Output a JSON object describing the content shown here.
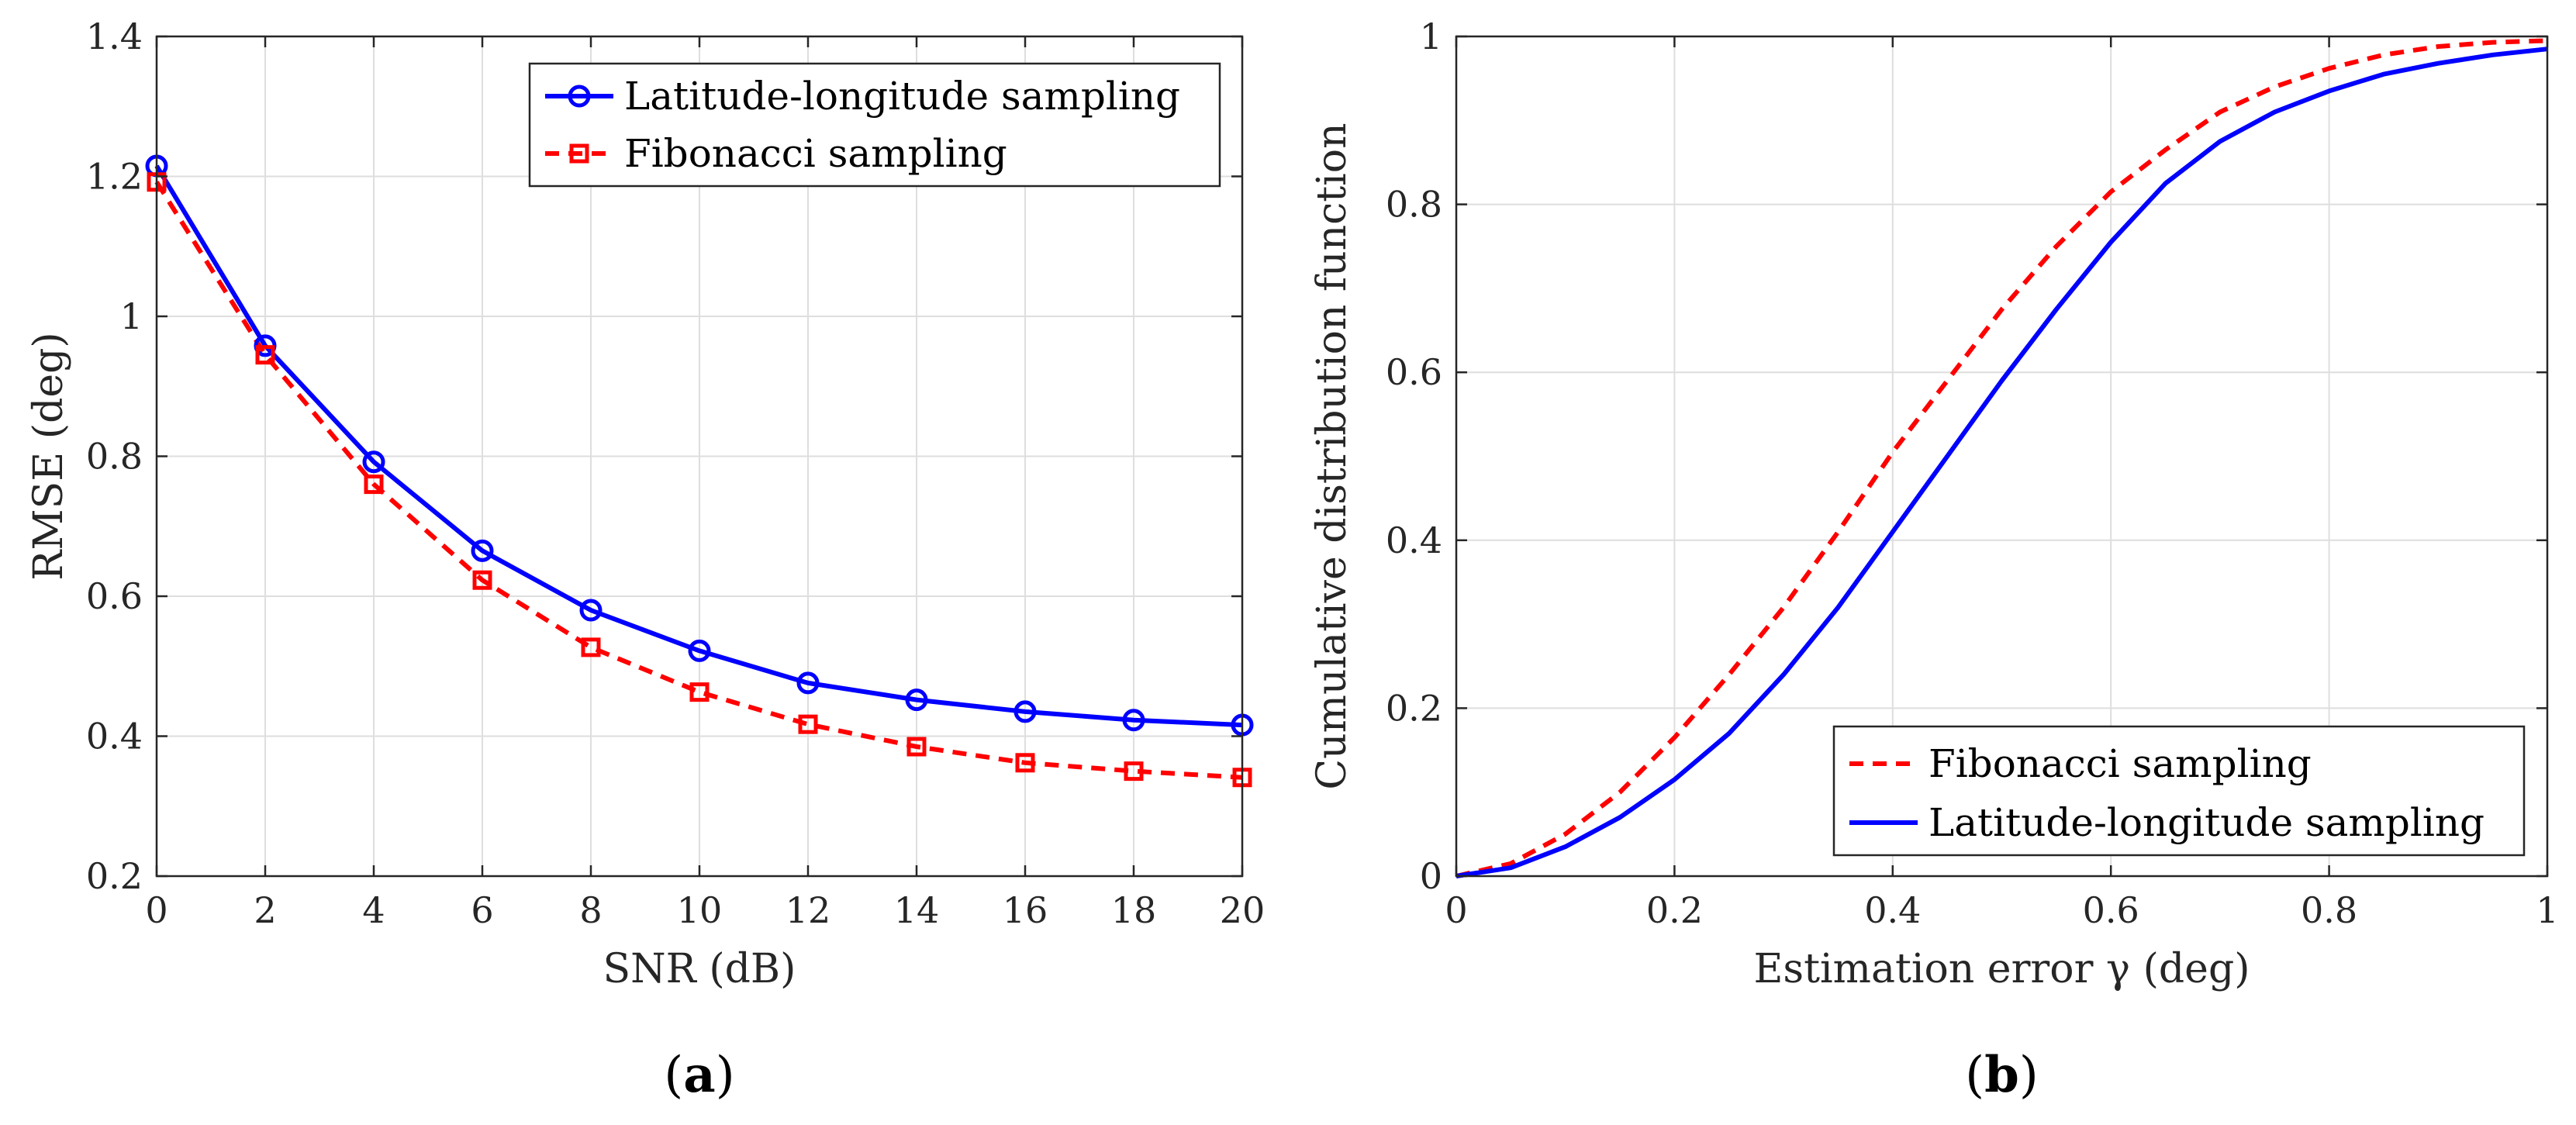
{
  "chart_data": [
    {
      "id": "a",
      "type": "line",
      "panel_label": "a",
      "xlabel": "SNR (dB)",
      "ylabel": "RMSE (deg)",
      "xlim": [
        0,
        20
      ],
      "ylim": [
        0.2,
        1.4
      ],
      "xticks": [
        "0",
        "2",
        "4",
        "6",
        "8",
        "10",
        "12",
        "14",
        "16",
        "18",
        "20"
      ],
      "yticks": [
        "0.2",
        "0.4",
        "0.6",
        "0.8",
        "1",
        "1.2",
        "1.4"
      ],
      "grid": true,
      "legend_position": "top-right",
      "x": [
        0,
        2,
        4,
        6,
        8,
        10,
        12,
        14,
        16,
        18,
        20
      ],
      "series": [
        {
          "name": "Latitude-longitude sampling",
          "color": "#0000ff",
          "style": "solid",
          "marker": "circle",
          "values": [
            1.215,
            0.958,
            0.792,
            0.665,
            0.58,
            0.522,
            0.476,
            0.452,
            0.435,
            0.423,
            0.416
          ]
        },
        {
          "name": "Fibonacci sampling",
          "color": "#ff0000",
          "style": "dashed",
          "marker": "square",
          "values": [
            1.192,
            0.945,
            0.76,
            0.623,
            0.527,
            0.463,
            0.417,
            0.385,
            0.362,
            0.35,
            0.341
          ]
        }
      ]
    },
    {
      "id": "b",
      "type": "line",
      "panel_label": "b",
      "xlabel": "Estimation error γ (deg)",
      "ylabel": "Cumulative distribution function",
      "xlim": [
        0,
        1
      ],
      "ylim": [
        0,
        1
      ],
      "xticks": [
        "0",
        "0.2",
        "0.4",
        "0.6",
        "0.8",
        "1"
      ],
      "yticks": [
        "0",
        "0.2",
        "0.4",
        "0.6",
        "0.8",
        "1"
      ],
      "grid": true,
      "legend_position": "bottom-right",
      "x": [
        0,
        0.05,
        0.1,
        0.15,
        0.2,
        0.25,
        0.3,
        0.35,
        0.4,
        0.45,
        0.5,
        0.55,
        0.6,
        0.65,
        0.7,
        0.75,
        0.8,
        0.85,
        0.9,
        0.95,
        1.0
      ],
      "series": [
        {
          "name": "Fibonacci sampling",
          "color": "#ff0000",
          "style": "dashed",
          "values": [
            0.0,
            0.015,
            0.05,
            0.1,
            0.165,
            0.24,
            0.32,
            0.41,
            0.505,
            0.59,
            0.675,
            0.75,
            0.815,
            0.865,
            0.91,
            0.94,
            0.962,
            0.978,
            0.988,
            0.993,
            0.995
          ]
        },
        {
          "name": "Latitude-longitude sampling",
          "color": "#0000ff",
          "style": "solid",
          "values": [
            0.0,
            0.01,
            0.035,
            0.07,
            0.115,
            0.17,
            0.24,
            0.32,
            0.41,
            0.5,
            0.59,
            0.675,
            0.755,
            0.825,
            0.875,
            0.91,
            0.935,
            0.955,
            0.968,
            0.978,
            0.985
          ]
        }
      ]
    }
  ]
}
